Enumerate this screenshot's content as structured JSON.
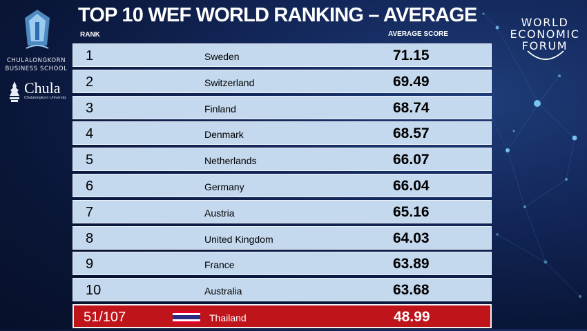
{
  "title": "TOP 10 WEF WORLD RANKING – AVERAGE",
  "column_headers": {
    "rank": "RANK",
    "score": "AVERAGE SCORE"
  },
  "left_logos": {
    "school_line1": "CHULALONGKORN",
    "school_line2": "BUSINESS SCHOOL",
    "chula_word": "Chula",
    "chula_sub": "Chulalongkorn University"
  },
  "wef_logo": {
    "line1": "WORLD",
    "line2": "ECONOMIC",
    "line3": "FORUM"
  },
  "rankings": [
    {
      "rank": "1",
      "country": "Sweden",
      "score": "71.15"
    },
    {
      "rank": "2",
      "country": "Switzerland",
      "score": "69.49"
    },
    {
      "rank": "3",
      "country": "Finland",
      "score": "68.74"
    },
    {
      "rank": "4",
      "country": "Denmark",
      "score": "68.57"
    },
    {
      "rank": "5",
      "country": "Netherlands",
      "score": "66.07"
    },
    {
      "rank": "6",
      "country": "Germany",
      "score": "66.04"
    },
    {
      "rank": "7",
      "country": "Austria",
      "score": "65.16"
    },
    {
      "rank": "8",
      "country": "United Kingdom",
      "score": "64.03"
    },
    {
      "rank": "9",
      "country": "France",
      "score": "63.89"
    },
    {
      "rank": "10",
      "country": "Australia",
      "score": "63.68"
    }
  ],
  "highlight": {
    "rank": "51/107",
    "country": "Thailand",
    "score": "48.99",
    "flag_icon": "thailand-flag-icon"
  },
  "colors": {
    "background": "#0a1638",
    "row_fill": "#c4d8ee",
    "highlight_fill": "#c0141b"
  }
}
